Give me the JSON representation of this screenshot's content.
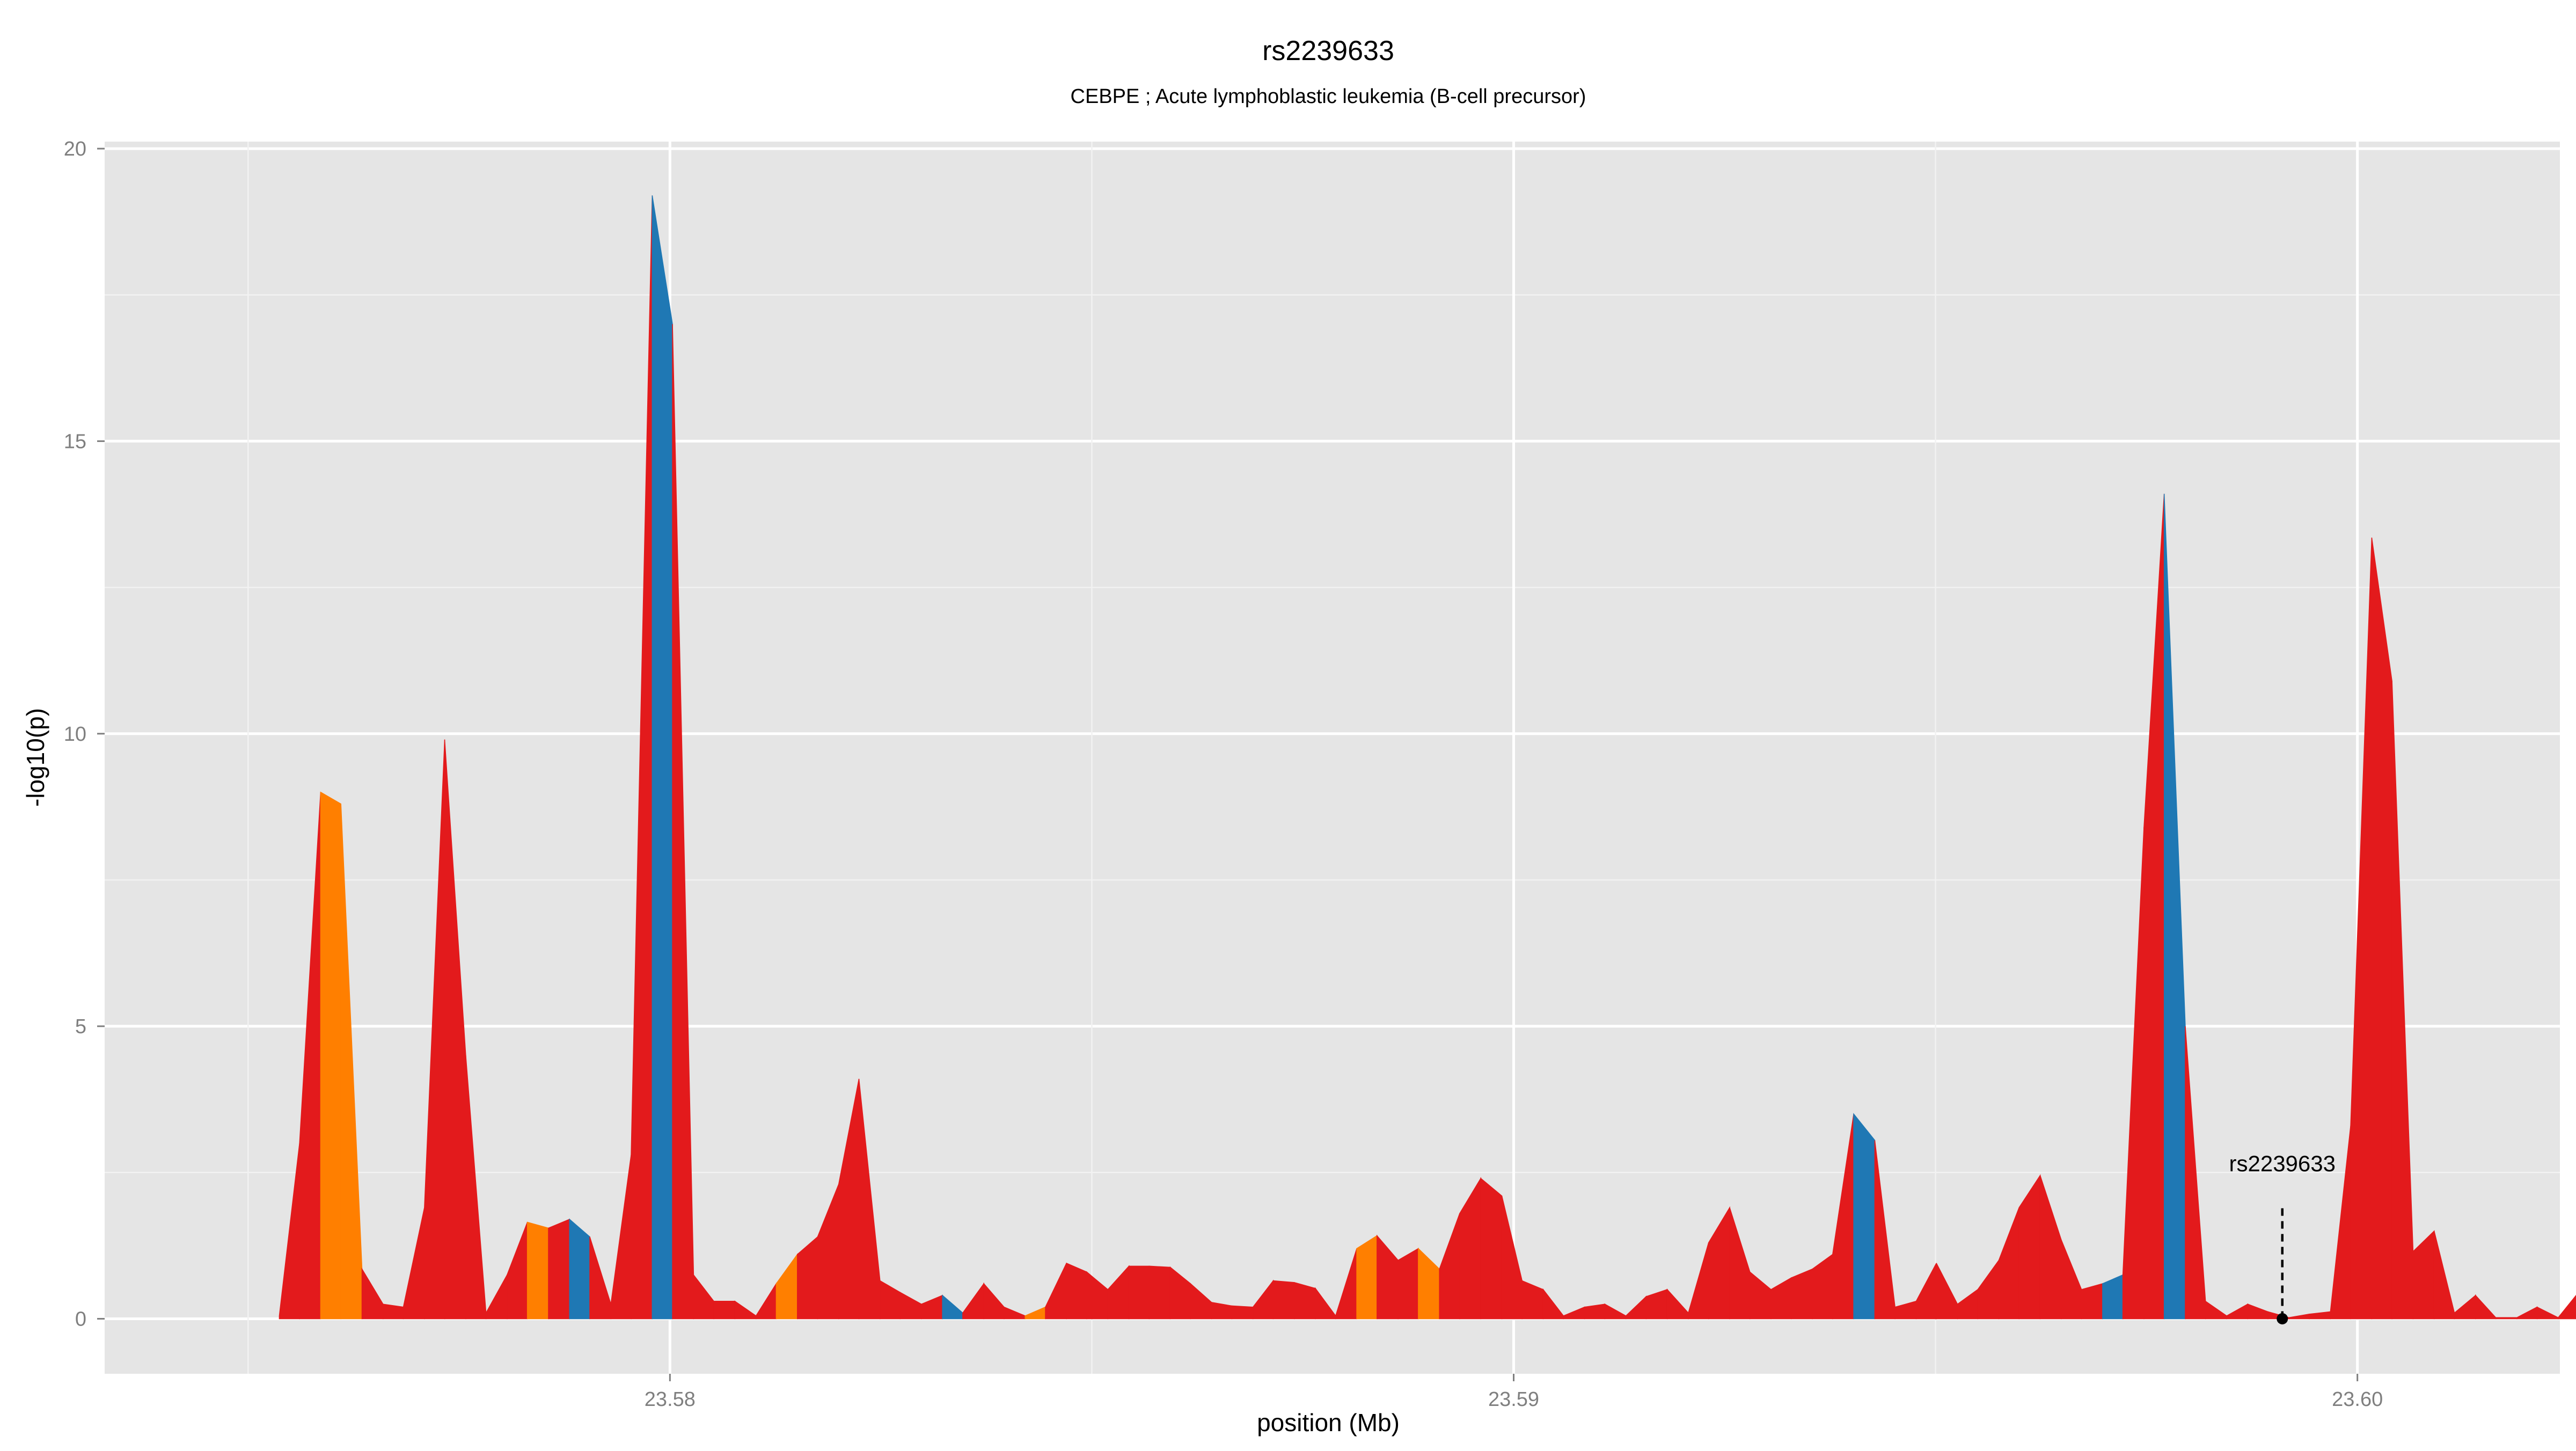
{
  "chart_data": {
    "type": "area",
    "title": "rs2239633",
    "subtitle": "CEBPE  ; Acute lymphoblastic leukemia (B-cell precursor)",
    "xlabel": "position (Mb)",
    "ylabel": "-log10(p)",
    "xlim": [
      23.5733,
      23.6024
    ],
    "ylim": [
      -0.94,
      20.12
    ],
    "x_ticks": [
      23.58,
      23.59,
      23.6
    ],
    "x_tick_labels": [
      "23.58",
      "23.59",
      "23.60"
    ],
    "y_ticks": [
      0,
      5,
      10,
      15,
      20
    ],
    "y_tick_labels": [
      "0",
      "5",
      "10",
      "15",
      "20"
    ],
    "grid": true,
    "legend": "none",
    "colors": {
      "red": "#E31A1C",
      "orange": "#FF7F00",
      "blue": "#1F78B4",
      "panel_background": "#E5E5E5",
      "grid": "#FFFFFF",
      "marker": "#000000"
    },
    "points": [
      {
        "x": 23.57537,
        "y": 0.05,
        "c": "red"
      },
      {
        "x": 23.57561,
        "y": 3.0,
        "c": "red"
      },
      {
        "x": 23.57586,
        "y": 9.0,
        "c": "orange"
      },
      {
        "x": 23.5761,
        "y": 8.8,
        "c": "orange"
      },
      {
        "x": 23.57635,
        "y": 0.85,
        "c": "red"
      },
      {
        "x": 23.5766,
        "y": 0.25,
        "c": "red"
      },
      {
        "x": 23.57684,
        "y": 0.2,
        "c": "red"
      },
      {
        "x": 23.57709,
        "y": 1.9,
        "c": "red"
      },
      {
        "x": 23.57733,
        "y": 9.9,
        "c": "red"
      },
      {
        "x": 23.57758,
        "y": 4.5,
        "c": "red"
      },
      {
        "x": 23.57782,
        "y": 0.1,
        "c": "red"
      },
      {
        "x": 23.57807,
        "y": 0.75,
        "c": "red"
      },
      {
        "x": 23.57831,
        "y": 1.65,
        "c": "orange"
      },
      {
        "x": 23.57856,
        "y": 1.55,
        "c": "red"
      },
      {
        "x": 23.57881,
        "y": 1.7,
        "c": "blue"
      },
      {
        "x": 23.57905,
        "y": 1.4,
        "c": "red"
      },
      {
        "x": 23.5793,
        "y": 0.25,
        "c": "red"
      },
      {
        "x": 23.57954,
        "y": 2.8,
        "c": "red"
      },
      {
        "x": 23.57979,
        "y": 19.2,
        "c": "blue"
      },
      {
        "x": 23.58003,
        "y": 17.0,
        "c": "red"
      },
      {
        "x": 23.58028,
        "y": 0.75,
        "c": "red"
      },
      {
        "x": 23.58052,
        "y": 0.3,
        "c": "red"
      },
      {
        "x": 23.58077,
        "y": 0.3,
        "c": "red"
      },
      {
        "x": 23.58102,
        "y": 0.05,
        "c": "red"
      },
      {
        "x": 23.58126,
        "y": 0.6,
        "c": "orange"
      },
      {
        "x": 23.58151,
        "y": 1.1,
        "c": "red"
      },
      {
        "x": 23.58175,
        "y": 1.4,
        "c": "red"
      },
      {
        "x": 23.582,
        "y": 2.3,
        "c": "red"
      },
      {
        "x": 23.58224,
        "y": 4.1,
        "c": "red"
      },
      {
        "x": 23.58249,
        "y": 0.65,
        "c": "red"
      },
      {
        "x": 23.58273,
        "y": 0.45,
        "c": "red"
      },
      {
        "x": 23.58298,
        "y": 0.25,
        "c": "red"
      },
      {
        "x": 23.58323,
        "y": 0.4,
        "c": "blue"
      },
      {
        "x": 23.58347,
        "y": 0.1,
        "c": "red"
      },
      {
        "x": 23.58372,
        "y": 0.6,
        "c": "red"
      },
      {
        "x": 23.58396,
        "y": 0.2,
        "c": "red"
      },
      {
        "x": 23.58421,
        "y": 0.05,
        "c": "orange"
      },
      {
        "x": 23.58445,
        "y": 0.2,
        "c": "red"
      },
      {
        "x": 23.5847,
        "y": 0.95,
        "c": "red"
      },
      {
        "x": 23.58494,
        "y": 0.8,
        "c": "red"
      },
      {
        "x": 23.58519,
        "y": 0.5,
        "c": "red"
      },
      {
        "x": 23.58544,
        "y": 0.9,
        "c": "red"
      },
      {
        "x": 23.58568,
        "y": 0.9,
        "c": "red"
      },
      {
        "x": 23.58593,
        "y": 0.88,
        "c": "red"
      },
      {
        "x": 23.58617,
        "y": 0.6,
        "c": "red"
      },
      {
        "x": 23.58642,
        "y": 0.28,
        "c": "red"
      },
      {
        "x": 23.58666,
        "y": 0.22,
        "c": "red"
      },
      {
        "x": 23.58691,
        "y": 0.2,
        "c": "red"
      },
      {
        "x": 23.58715,
        "y": 0.65,
        "c": "red"
      },
      {
        "x": 23.5874,
        "y": 0.62,
        "c": "red"
      },
      {
        "x": 23.58765,
        "y": 0.52,
        "c": "red"
      },
      {
        "x": 23.58789,
        "y": 0.05,
        "c": "red"
      },
      {
        "x": 23.58814,
        "y": 1.2,
        "c": "orange"
      },
      {
        "x": 23.58838,
        "y": 1.42,
        "c": "red"
      },
      {
        "x": 23.58863,
        "y": 1.0,
        "c": "red"
      },
      {
        "x": 23.58887,
        "y": 1.2,
        "c": "orange"
      },
      {
        "x": 23.58912,
        "y": 0.85,
        "c": "red"
      },
      {
        "x": 23.58936,
        "y": 1.8,
        "c": "red"
      },
      {
        "x": 23.58961,
        "y": 2.4,
        "c": "red"
      },
      {
        "x": 23.58986,
        "y": 2.1,
        "c": "red"
      },
      {
        "x": 23.5901,
        "y": 0.65,
        "c": "red"
      },
      {
        "x": 23.59035,
        "y": 0.5,
        "c": "red"
      },
      {
        "x": 23.59059,
        "y": 0.05,
        "c": "red"
      },
      {
        "x": 23.59084,
        "y": 0.2,
        "c": "red"
      },
      {
        "x": 23.59108,
        "y": 0.25,
        "c": "red"
      },
      {
        "x": 23.59133,
        "y": 0.05,
        "c": "red"
      },
      {
        "x": 23.59157,
        "y": 0.38,
        "c": "red"
      },
      {
        "x": 23.59182,
        "y": 0.5,
        "c": "red"
      },
      {
        "x": 23.59207,
        "y": 0.1,
        "c": "red"
      },
      {
        "x": 23.59231,
        "y": 1.3,
        "c": "red"
      },
      {
        "x": 23.59256,
        "y": 1.9,
        "c": "red"
      },
      {
        "x": 23.5928,
        "y": 0.8,
        "c": "red"
      },
      {
        "x": 23.59305,
        "y": 0.5,
        "c": "red"
      },
      {
        "x": 23.59329,
        "y": 0.7,
        "c": "red"
      },
      {
        "x": 23.59354,
        "y": 0.85,
        "c": "red"
      },
      {
        "x": 23.59378,
        "y": 1.1,
        "c": "red"
      },
      {
        "x": 23.59403,
        "y": 3.5,
        "c": "blue"
      },
      {
        "x": 23.59428,
        "y": 3.05,
        "c": "red"
      },
      {
        "x": 23.59452,
        "y": 0.2,
        "c": "red"
      },
      {
        "x": 23.59477,
        "y": 0.3,
        "c": "red"
      },
      {
        "x": 23.59501,
        "y": 0.95,
        "c": "red"
      },
      {
        "x": 23.59526,
        "y": 0.25,
        "c": "red"
      },
      {
        "x": 23.5955,
        "y": 0.5,
        "c": "red"
      },
      {
        "x": 23.59575,
        "y": 1.0,
        "c": "red"
      },
      {
        "x": 23.59599,
        "y": 1.9,
        "c": "red"
      },
      {
        "x": 23.59624,
        "y": 2.45,
        "c": "red"
      },
      {
        "x": 23.59649,
        "y": 1.35,
        "c": "red"
      },
      {
        "x": 23.59673,
        "y": 0.5,
        "c": "red"
      },
      {
        "x": 23.59698,
        "y": 0.6,
        "c": "blue"
      },
      {
        "x": 23.59722,
        "y": 0.75,
        "c": "red"
      },
      {
        "x": 23.59747,
        "y": 8.4,
        "c": "red"
      },
      {
        "x": 23.59771,
        "y": 14.1,
        "c": "blue"
      },
      {
        "x": 23.59796,
        "y": 5.0,
        "c": "red"
      },
      {
        "x": 23.5982,
        "y": 0.3,
        "c": "red"
      },
      {
        "x": 23.59845,
        "y": 0.05,
        "c": "red"
      },
      {
        "x": 23.5987,
        "y": 0.25,
        "c": "red"
      },
      {
        "x": 23.59894,
        "y": 0.12,
        "c": "red"
      },
      {
        "x": 23.59919,
        "y": 0.02,
        "c": "red"
      },
      {
        "x": 23.59943,
        "y": 0.08,
        "c": "red"
      },
      {
        "x": 23.59968,
        "y": 0.12,
        "c": "red"
      },
      {
        "x": 23.59992,
        "y": 3.3,
        "c": "red"
      },
      {
        "x": 23.60017,
        "y": 13.35,
        "c": "red"
      },
      {
        "x": 23.60041,
        "y": 10.9,
        "c": "red"
      },
      {
        "x": 23.60066,
        "y": 1.15,
        "c": "red"
      },
      {
        "x": 23.60091,
        "y": 1.5,
        "c": "red"
      },
      {
        "x": 23.60115,
        "y": 0.1,
        "c": "red"
      },
      {
        "x": 23.6014,
        "y": 0.4,
        "c": "red"
      },
      {
        "x": 23.60164,
        "y": 0.02,
        "c": "red"
      },
      {
        "x": 23.60189,
        "y": 0.02,
        "c": "red"
      },
      {
        "x": 23.60213,
        "y": 0.2,
        "c": "red"
      },
      {
        "x": 23.60238,
        "y": 0.02,
        "c": "red"
      },
      {
        "x": 23.60262,
        "y": 0.45,
        "c": "red"
      }
    ],
    "annotation": {
      "label": "rs2239633",
      "x": 23.59911,
      "y": 0.0
    }
  }
}
